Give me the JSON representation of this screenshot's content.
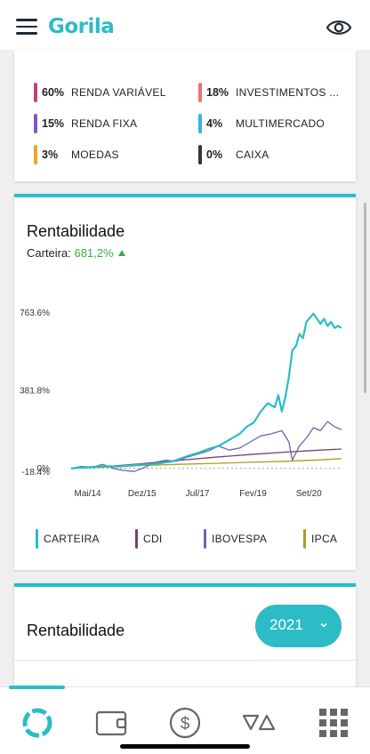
{
  "app": {
    "logo": "Gorila"
  },
  "allocation": [
    {
      "pct": "60%",
      "name": "RENDA VARIÁVEL",
      "color": "#c2407a"
    },
    {
      "pct": "18%",
      "name": "INVESTIMENTOS ...",
      "color": "#e57373"
    },
    {
      "pct": "15%",
      "name": "RENDA FIXA",
      "color": "#7e57c2"
    },
    {
      "pct": "4%",
      "name": "MULTIMERCADO",
      "color": "#35b3e3"
    },
    {
      "pct": "3%",
      "name": "MOEDAS",
      "color": "#f0a531"
    },
    {
      "pct": "0%",
      "name": "CAIXA",
      "color": "#2f3742"
    }
  ],
  "rentabilidade": {
    "title": "Rentabilidade",
    "carteira_label": "Carteira: ",
    "carteira_value": "681,2%"
  },
  "chart_data": {
    "type": "line",
    "y_tick_labels": [
      "763.6%",
      "381.8%",
      "0%",
      "-18.4%"
    ],
    "y_ticks": [
      763.6,
      381.8,
      0,
      -18.4
    ],
    "ylim": [
      -18.4,
      763.6
    ],
    "x_tick_labels": [
      "Mai/14",
      "Dez/15",
      "Jul/17",
      "Fev/19",
      "Set/20"
    ],
    "x_ticks": [
      2014.37,
      2015.92,
      2017.5,
      2019.08,
      2020.67
    ],
    "xlim": [
      2013.9,
      2021.6
    ],
    "series": [
      {
        "name": "CARTEIRA",
        "color": "#2bbcc6",
        "x": [
          2013.9,
          2014.3,
          2014.8,
          2015.3,
          2015.8,
          2016.3,
          2016.8,
          2017.2,
          2017.5,
          2017.8,
          2018.1,
          2018.4,
          2018.7,
          2018.9,
          2019.1,
          2019.3,
          2019.5,
          2019.7,
          2019.8,
          2019.9,
          2020.0,
          2020.1,
          2020.2,
          2020.3,
          2020.4,
          2020.5,
          2020.6,
          2020.7,
          2020.8,
          2020.9,
          2021.0,
          2021.1,
          2021.2,
          2021.3,
          2021.4,
          2021.5,
          2021.6
        ],
        "y": [
          0,
          5,
          10,
          10,
          18,
          22,
          35,
          60,
          75,
          95,
          110,
          140,
          170,
          205,
          225,
          280,
          320,
          300,
          360,
          280,
          350,
          450,
          580,
          600,
          660,
          640,
          720,
          740,
          760,
          735,
          710,
          735,
          700,
          720,
          690,
          700,
          690
        ]
      },
      {
        "name": "CDI",
        "color": "#7b3f6e",
        "x": [
          2013.9,
          2015.0,
          2016.0,
          2017.0,
          2018.0,
          2019.0,
          2020.0,
          2021.0,
          2021.6
        ],
        "y": [
          0,
          10,
          25,
          40,
          55,
          68,
          80,
          90,
          95
        ]
      },
      {
        "name": "IBOVESPA",
        "color": "#6a67a8",
        "x": [
          2013.9,
          2014.2,
          2014.5,
          2014.8,
          2015.1,
          2015.4,
          2015.7,
          2016.0,
          2016.3,
          2016.6,
          2016.9,
          2017.2,
          2017.5,
          2017.8,
          2018.1,
          2018.4,
          2018.7,
          2019.0,
          2019.3,
          2019.6,
          2019.9,
          2020.1,
          2020.2,
          2020.4,
          2020.6,
          2020.8,
          2021.0,
          2021.2,
          2021.4,
          2021.6
        ],
        "y": [
          0,
          10,
          5,
          20,
          0,
          -10,
          -15,
          5,
          30,
          40,
          35,
          55,
          70,
          85,
          110,
          90,
          100,
          130,
          160,
          170,
          185,
          130,
          40,
          110,
          150,
          200,
          185,
          230,
          205,
          190
        ]
      },
      {
        "name": "IPCA",
        "color": "#a9a01c",
        "x": [
          2013.9,
          2015.0,
          2016.0,
          2017.0,
          2018.0,
          2019.0,
          2020.0,
          2021.0,
          2021.6
        ],
        "y": [
          0,
          7,
          15,
          20,
          25,
          30,
          35,
          42,
          48
        ]
      }
    ]
  },
  "rentabilidade2": {
    "title": "Rentabilidade",
    "year": "2021"
  }
}
